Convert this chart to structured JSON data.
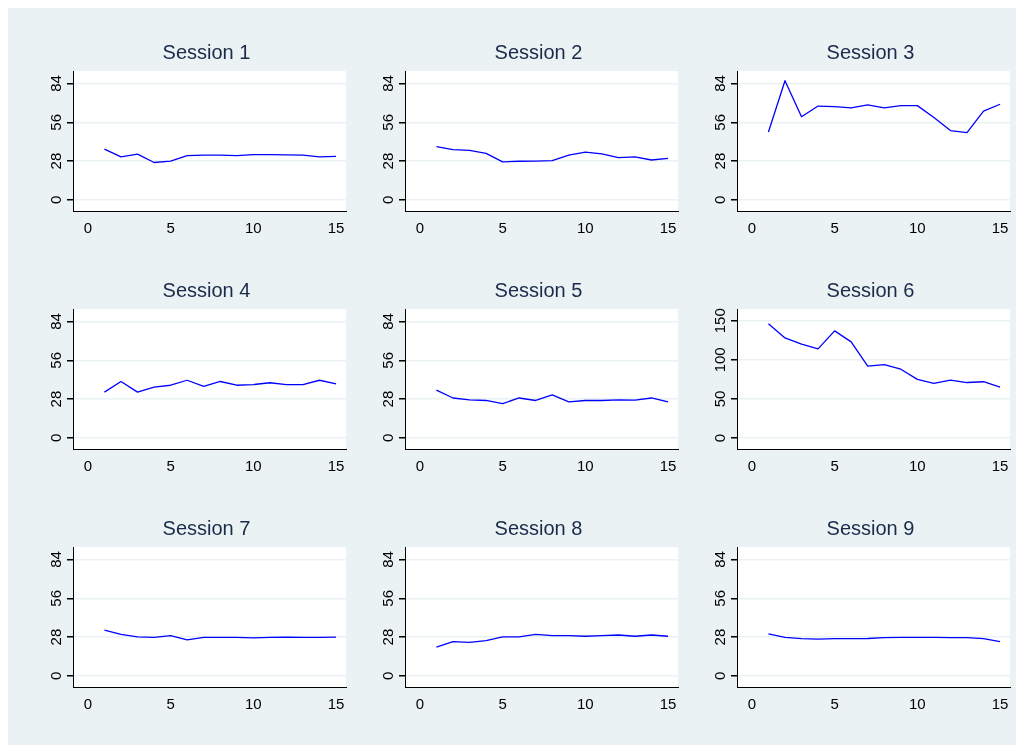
{
  "chart_data": [
    {
      "type": "line",
      "title": "Session 1",
      "x": [
        1,
        2,
        3,
        4,
        5,
        6,
        7,
        8,
        9,
        10,
        11,
        12,
        13,
        14,
        15
      ],
      "xlim": [
        -0.9,
        15.6
      ],
      "xticks": [
        0,
        5,
        10,
        15
      ],
      "ylim": [
        -8,
        93
      ],
      "yticks": [
        0,
        28,
        56,
        84
      ],
      "grid": "y",
      "marker": "none",
      "series": [
        {
          "color": "#0000ff",
          "values": [
            36.7,
            31,
            33,
            27,
            28,
            32,
            32.3,
            32.3,
            32,
            32.7,
            32.7,
            32.5,
            32.3,
            31,
            31.4
          ]
        }
      ]
    },
    {
      "type": "line",
      "title": "Session 2",
      "x": [
        1,
        2,
        3,
        4,
        5,
        6,
        7,
        8,
        9,
        10,
        11,
        12,
        13,
        14,
        15
      ],
      "xlim": [
        -0.9,
        15.6
      ],
      "xticks": [
        0,
        5,
        10,
        15
      ],
      "ylim": [
        -8,
        93
      ],
      "yticks": [
        0,
        28,
        56,
        84
      ],
      "grid": "y",
      "marker": "none",
      "series": [
        {
          "color": "#0000ff",
          "values": [
            38.5,
            36.3,
            35.8,
            33.6,
            27.4,
            27.9,
            28,
            28.3,
            32.3,
            34.5,
            33.2,
            30.5,
            31,
            28.8,
            30
          ]
        }
      ]
    },
    {
      "type": "line",
      "title": "Session 3",
      "x": [
        1,
        2,
        3,
        4,
        5,
        6,
        7,
        8,
        9,
        10,
        11,
        12,
        13,
        14,
        15
      ],
      "xlim": [
        -0.9,
        15.6
      ],
      "xticks": [
        0,
        5,
        10,
        15
      ],
      "ylim": [
        -8,
        93
      ],
      "yticks": [
        0,
        28,
        56,
        84
      ],
      "grid": "y",
      "marker": "none",
      "series": [
        {
          "color": "#0000ff",
          "values": [
            49,
            86,
            60,
            67.7,
            67.3,
            66.4,
            68.6,
            66.4,
            68,
            68,
            59.5,
            50,
            48.6,
            64,
            69
          ]
        }
      ]
    },
    {
      "type": "line",
      "title": "Session 4",
      "x": [
        1,
        2,
        3,
        4,
        5,
        6,
        7,
        8,
        9,
        10,
        11,
        12,
        13,
        14,
        15
      ],
      "xlim": [
        -0.9,
        15.6
      ],
      "xticks": [
        0,
        5,
        10,
        15
      ],
      "ylim": [
        -8,
        93
      ],
      "yticks": [
        0,
        28,
        56,
        84
      ],
      "grid": "y",
      "marker": "none",
      "series": [
        {
          "color": "#0000ff",
          "values": [
            33,
            40.7,
            33,
            36.7,
            38,
            41.6,
            37.2,
            40.7,
            38,
            38.5,
            39.8,
            38.5,
            38.5,
            41.6,
            39
          ]
        }
      ]
    },
    {
      "type": "line",
      "title": "Session 5",
      "x": [
        1,
        2,
        3,
        4,
        5,
        6,
        7,
        8,
        9,
        10,
        11,
        12,
        13,
        14,
        15
      ],
      "xlim": [
        -0.9,
        15.6
      ],
      "xticks": [
        0,
        5,
        10,
        15
      ],
      "ylim": [
        -8,
        93
      ],
      "yticks": [
        0,
        28,
        56,
        84
      ],
      "grid": "y",
      "marker": "none",
      "series": [
        {
          "color": "#0000ff",
          "values": [
            34.5,
            28.8,
            27.4,
            27,
            24.8,
            28.8,
            27,
            31,
            26,
            27,
            27,
            27.4,
            27.2,
            28.8,
            26
          ]
        }
      ]
    },
    {
      "type": "line",
      "title": "Session 6",
      "x": [
        1,
        2,
        3,
        4,
        5,
        6,
        7,
        8,
        9,
        10,
        11,
        12,
        13,
        14,
        15
      ],
      "xlim": [
        -0.9,
        15.6
      ],
      "xticks": [
        0,
        5,
        10,
        15
      ],
      "ylim": [
        -14,
        165
      ],
      "yticks": [
        0,
        50,
        100,
        150
      ],
      "grid": "y",
      "marker": "none",
      "series": [
        {
          "color": "#0000ff",
          "values": [
            146,
            128,
            120,
            114,
            137,
            123,
            92,
            94,
            88,
            75,
            70,
            74,
            71,
            72,
            65
          ]
        }
      ]
    },
    {
      "type": "line",
      "title": "Session 7",
      "x": [
        1,
        2,
        3,
        4,
        5,
        6,
        7,
        8,
        9,
        10,
        11,
        12,
        13,
        14,
        15
      ],
      "xlim": [
        -0.9,
        15.6
      ],
      "xticks": [
        0,
        5,
        10,
        15
      ],
      "ylim": [
        -8,
        93
      ],
      "yticks": [
        0,
        28,
        56,
        84
      ],
      "grid": "y",
      "marker": "none",
      "series": [
        {
          "color": "#0000ff",
          "values": [
            33,
            30,
            28.2,
            27.8,
            29,
            26,
            27.8,
            27.8,
            27.8,
            27.5,
            27.8,
            28,
            27.8,
            27.8,
            28
          ]
        }
      ]
    },
    {
      "type": "line",
      "title": "Session 8",
      "x": [
        1,
        2,
        3,
        4,
        5,
        6,
        7,
        8,
        9,
        10,
        11,
        12,
        13,
        14,
        15
      ],
      "xlim": [
        -0.9,
        15.6
      ],
      "xticks": [
        0,
        5,
        10,
        15
      ],
      "ylim": [
        -8,
        93
      ],
      "yticks": [
        0,
        28,
        56,
        84
      ],
      "grid": "y",
      "marker": "none",
      "series": [
        {
          "color": "#0000ff",
          "values": [
            20.7,
            24.7,
            24.2,
            25.5,
            28.2,
            28.2,
            30,
            29,
            29,
            28.6,
            29,
            29.5,
            28.6,
            29.5,
            28.6
          ]
        }
      ]
    },
    {
      "type": "line",
      "title": "Session 9",
      "x": [
        1,
        2,
        3,
        4,
        5,
        6,
        7,
        8,
        9,
        10,
        11,
        12,
        13,
        14,
        15
      ],
      "xlim": [
        -0.9,
        15.6
      ],
      "xticks": [
        0,
        5,
        10,
        15
      ],
      "ylim": [
        -8,
        93
      ],
      "yticks": [
        0,
        28,
        56,
        84
      ],
      "grid": "y",
      "marker": "none",
      "series": [
        {
          "color": "#0000ff",
          "values": [
            30.4,
            27.8,
            26.9,
            26.5,
            26.9,
            26.9,
            27,
            27.6,
            27.8,
            27.8,
            27.8,
            27.6,
            27.6,
            26.9,
            24.7
          ]
        }
      ]
    }
  ]
}
